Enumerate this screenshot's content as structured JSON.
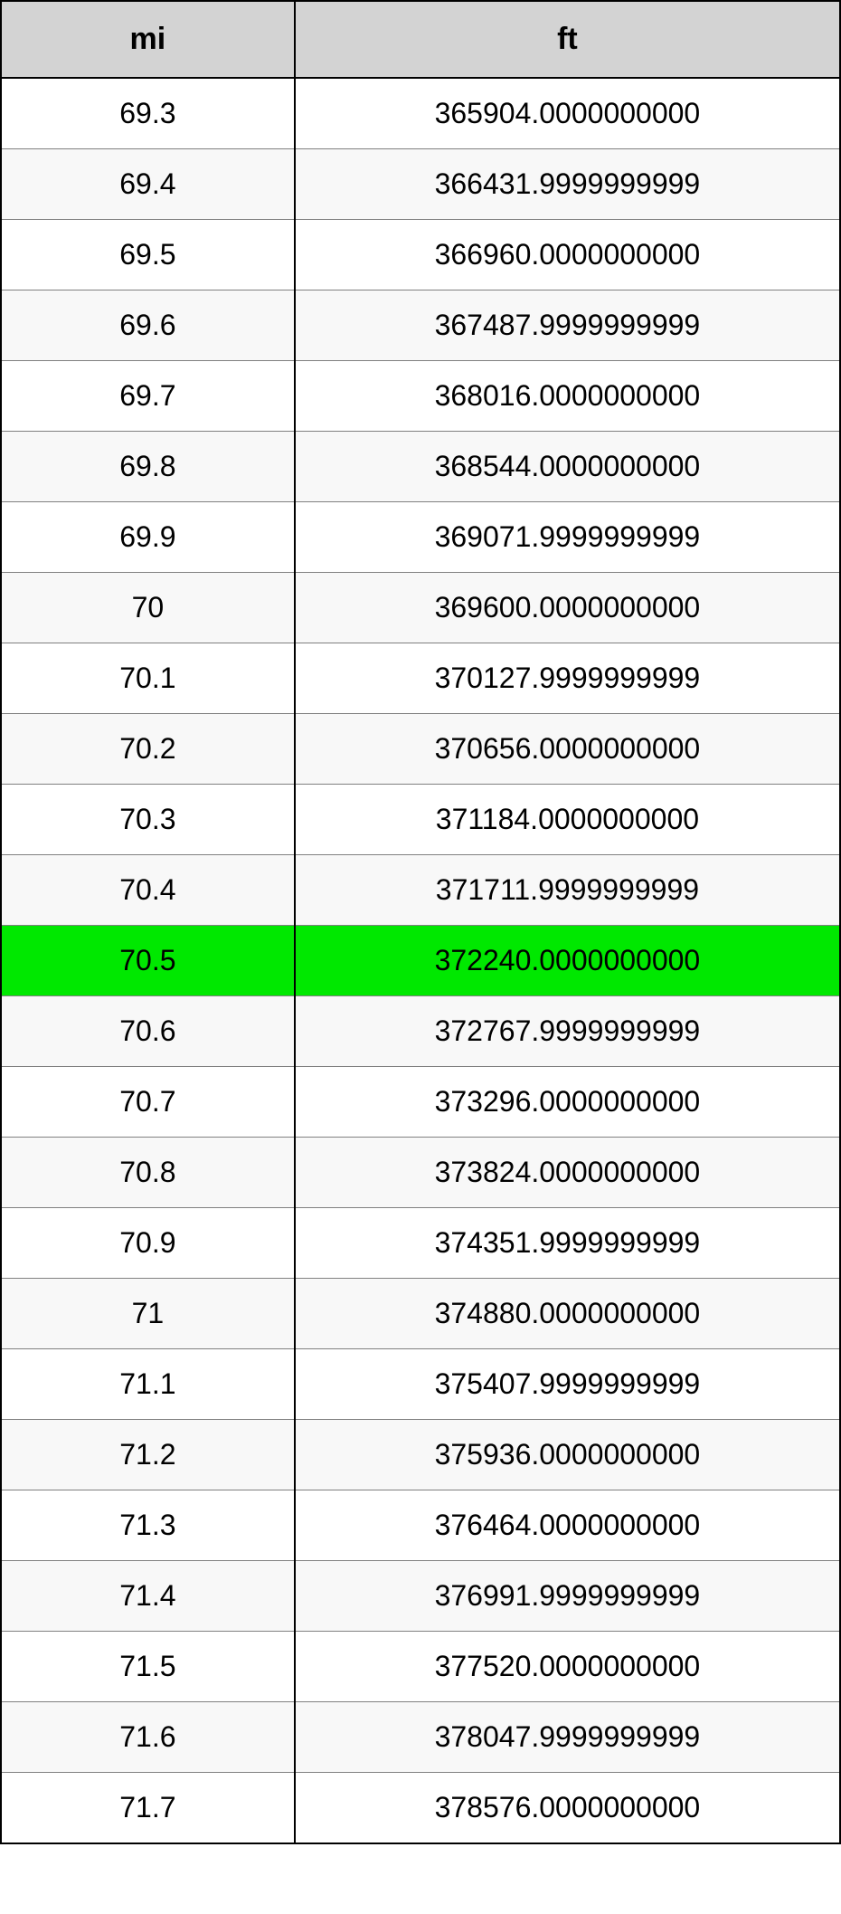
{
  "table": {
    "type": "table",
    "columns": [
      "mi",
      "ft"
    ],
    "column_widths": [
      "35%",
      "65%"
    ],
    "header_bg_color": "#d3d3d3",
    "header_font_size": 34,
    "header_font_weight": "bold",
    "cell_font_size": 32,
    "border_color": "#000000",
    "row_border_color": "#808080",
    "odd_row_bg": "#ffffff",
    "even_row_bg": "#f8f8f8",
    "highlight_bg": "#00e800",
    "text_color": "#000000",
    "highlighted_row_index": 12,
    "rows": [
      {
        "mi": "69.3",
        "ft": "365904.0000000000"
      },
      {
        "mi": "69.4",
        "ft": "366431.9999999999"
      },
      {
        "mi": "69.5",
        "ft": "366960.0000000000"
      },
      {
        "mi": "69.6",
        "ft": "367487.9999999999"
      },
      {
        "mi": "69.7",
        "ft": "368016.0000000000"
      },
      {
        "mi": "69.8",
        "ft": "368544.0000000000"
      },
      {
        "mi": "69.9",
        "ft": "369071.9999999999"
      },
      {
        "mi": "70",
        "ft": "369600.0000000000"
      },
      {
        "mi": "70.1",
        "ft": "370127.9999999999"
      },
      {
        "mi": "70.2",
        "ft": "370656.0000000000"
      },
      {
        "mi": "70.3",
        "ft": "371184.0000000000"
      },
      {
        "mi": "70.4",
        "ft": "371711.9999999999"
      },
      {
        "mi": "70.5",
        "ft": "372240.0000000000"
      },
      {
        "mi": "70.6",
        "ft": "372767.9999999999"
      },
      {
        "mi": "70.7",
        "ft": "373296.0000000000"
      },
      {
        "mi": "70.8",
        "ft": "373824.0000000000"
      },
      {
        "mi": "70.9",
        "ft": "374351.9999999999"
      },
      {
        "mi": "71",
        "ft": "374880.0000000000"
      },
      {
        "mi": "71.1",
        "ft": "375407.9999999999"
      },
      {
        "mi": "71.2",
        "ft": "375936.0000000000"
      },
      {
        "mi": "71.3",
        "ft": "376464.0000000000"
      },
      {
        "mi": "71.4",
        "ft": "376991.9999999999"
      },
      {
        "mi": "71.5",
        "ft": "377520.0000000000"
      },
      {
        "mi": "71.6",
        "ft": "378047.9999999999"
      },
      {
        "mi": "71.7",
        "ft": "378576.0000000000"
      }
    ]
  }
}
